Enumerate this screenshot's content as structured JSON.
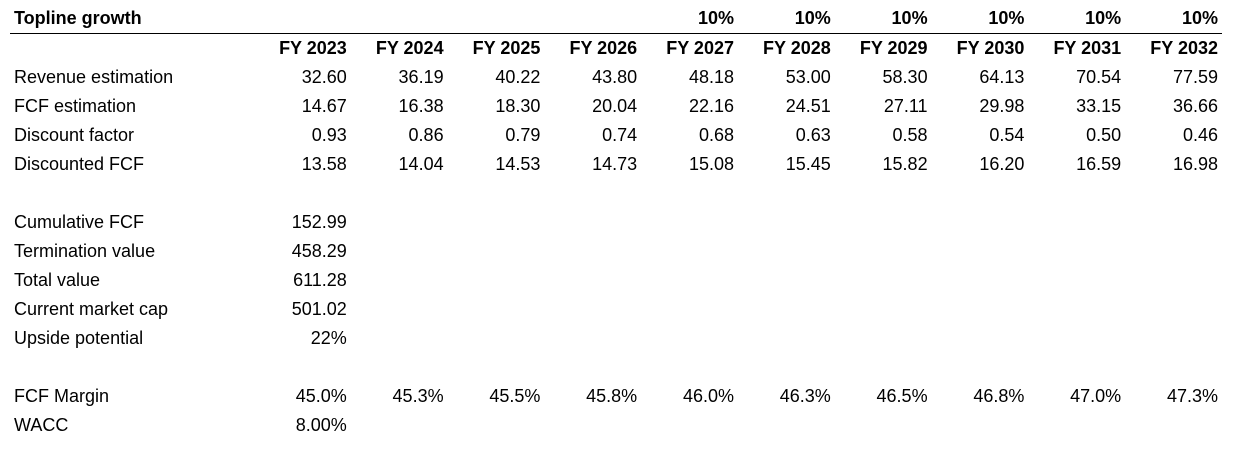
{
  "title": "Topline growth",
  "growth_rates": [
    "",
    "",
    "",
    "",
    "10%",
    "10%",
    "10%",
    "10%",
    "10%",
    "10%"
  ],
  "years": [
    "FY 2023",
    "FY 2024",
    "FY 2025",
    "FY 2026",
    "FY 2027",
    "FY 2028",
    "FY 2029",
    "FY 2030",
    "FY 2031",
    "FY 2032"
  ],
  "projection_rows": [
    {
      "label": "Revenue estimation",
      "values": [
        "32.60",
        "36.19",
        "40.22",
        "43.80",
        "48.18",
        "53.00",
        "58.30",
        "64.13",
        "70.54",
        "77.59"
      ]
    },
    {
      "label": "FCF estimation",
      "values": [
        "14.67",
        "16.38",
        "18.30",
        "20.04",
        "22.16",
        "24.51",
        "27.11",
        "29.98",
        "33.15",
        "36.66"
      ]
    },
    {
      "label": "Discount factor",
      "values": [
        "0.93",
        "0.86",
        "0.79",
        "0.74",
        "0.68",
        "0.63",
        "0.58",
        "0.54",
        "0.50",
        "0.46"
      ]
    },
    {
      "label": "Discounted FCF",
      "values": [
        "13.58",
        "14.04",
        "14.53",
        "14.73",
        "15.08",
        "15.45",
        "15.82",
        "16.20",
        "16.59",
        "16.98"
      ]
    }
  ],
  "valuation_rows": [
    {
      "label": "Cumulative FCF",
      "value": "152.99"
    },
    {
      "label": "Termination value",
      "value": "458.29"
    },
    {
      "label": "Total value",
      "value": "611.28"
    },
    {
      "label": "Current market cap",
      "value": "501.02"
    },
    {
      "label": "Upside potential",
      "value": "22%"
    }
  ],
  "fcf_margin": {
    "label": "FCF Margin",
    "values": [
      "45.0%",
      "45.3%",
      "45.5%",
      "45.8%",
      "46.0%",
      "46.3%",
      "46.5%",
      "46.8%",
      "47.0%",
      "47.3%"
    ]
  },
  "wacc": {
    "label": "WACC",
    "value": "8.00%"
  }
}
